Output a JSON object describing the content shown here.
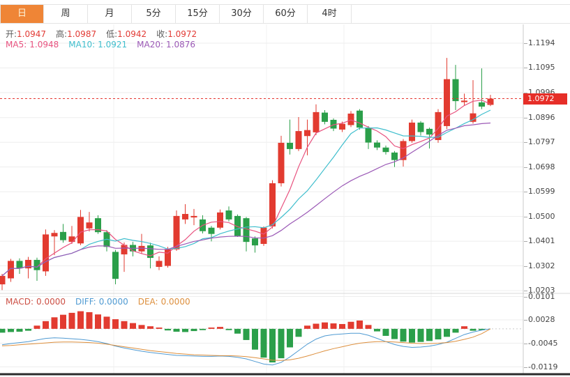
{
  "tabs": {
    "items": [
      {
        "label": "日",
        "active": true
      },
      {
        "label": "周",
        "active": false
      },
      {
        "label": "月",
        "active": false
      },
      {
        "label": "5分",
        "active": false
      },
      {
        "label": "15分",
        "active": false
      },
      {
        "label": "30分",
        "active": false
      },
      {
        "label": "60分",
        "active": false
      },
      {
        "label": "4时",
        "active": false
      }
    ]
  },
  "info": {
    "open_label": "开:",
    "open": "1.0947",
    "high_label": "高:",
    "high": "1.0987",
    "low_label": "低:",
    "low": "1.0942",
    "close_label": "收:",
    "close": "1.0972",
    "ma5_label": "MA5:",
    "ma5": "1.0948",
    "ma10_label": "MA10:",
    "ma10": "1.0921",
    "ma20_label": "MA20:",
    "ma20": "1.0876",
    "macd_label": "MACD:",
    "macd": "0.0000",
    "diff_label": "DIFF:",
    "diff": "0.0000",
    "dea_label": "DEA:",
    "dea": "0.0000"
  },
  "price_axis": {
    "ticks": [
      "1.1194",
      "1.1095",
      "1.0996",
      "1.0896",
      "1.0797",
      "1.0698",
      "1.0599",
      "1.0500",
      "1.0401",
      "1.0302",
      "1.0203"
    ],
    "last_price": "1.0972"
  },
  "macd_axis": {
    "ticks": [
      "0.0101",
      "0.0028",
      "-0.0045",
      "-0.0119"
    ]
  },
  "colors": {
    "up": "#e23b30",
    "down": "#2b9f4a",
    "ma5": "#e8527f",
    "ma10": "#3fbecd",
    "ma20": "#9b59b6",
    "diff": "#4f9ad2",
    "dea": "#dd8f3d",
    "tab_accent": "#ef8536",
    "badge": "#e62e28",
    "grid": "#ededed",
    "last_price_line": "#e6352e"
  },
  "chart_data": {
    "type": "candlestick",
    "title": "",
    "panes": [
      "price",
      "macd"
    ],
    "grid": true,
    "legend_position": "none",
    "price_ticks": [
      1.1194,
      1.1095,
      1.0996,
      1.0896,
      1.0797,
      1.0698,
      1.0599,
      1.05,
      1.0401,
      1.0302,
      1.0203
    ],
    "macd_ticks": [
      0.0101,
      0.0028,
      -0.0045,
      -0.0119
    ],
    "last_price": 1.0972,
    "ohlc_readout": {
      "open": 1.0947,
      "high": 1.0987,
      "low": 1.0942,
      "close": 1.0972
    },
    "ma_readout": {
      "MA5": 1.0948,
      "MA10": 1.0921,
      "MA20": 1.0876
    },
    "macd_readout": {
      "MACD": 0.0,
      "DIFF": 0.0,
      "DEA": 0.0
    },
    "ma_windows": [
      5,
      10,
      20
    ],
    "candles": [
      [
        1.0228,
        1.027,
        1.0205,
        1.0262
      ],
      [
        1.0252,
        1.033,
        1.0238,
        1.0322
      ],
      [
        1.0322,
        1.0332,
        1.027,
        1.0292
      ],
      [
        1.0292,
        1.0338,
        1.0252,
        1.0326
      ],
      [
        1.0326,
        1.0335,
        1.0242,
        1.0285
      ],
      [
        1.028,
        1.0448,
        1.0262,
        1.0428
      ],
      [
        1.042,
        1.0445,
        1.0345,
        1.0434
      ],
      [
        1.0438,
        1.047,
        1.0395,
        1.0405
      ],
      [
        1.0398,
        1.0462,
        1.039,
        1.042
      ],
      [
        1.0392,
        1.0526,
        1.0385,
        1.0498
      ],
      [
        1.0452,
        1.0518,
        1.044,
        1.0476
      ],
      [
        1.0493,
        1.0505,
        1.043,
        1.0437
      ],
      [
        1.0437,
        1.0445,
        1.036,
        1.0378
      ],
      [
        1.0358,
        1.0366,
        1.0228,
        1.025
      ],
      [
        1.0348,
        1.0396,
        1.0278,
        1.0386
      ],
      [
        1.0386,
        1.0398,
        1.034,
        1.036
      ],
      [
        1.036,
        1.043,
        1.0352,
        1.0382
      ],
      [
        1.0384,
        1.0395,
        1.0292,
        1.0334
      ],
      [
        1.0298,
        1.034,
        1.0285,
        1.0322
      ],
      [
        1.0302,
        1.0378,
        1.0295,
        1.0368
      ],
      [
        1.0368,
        1.0524,
        1.0362,
        1.0502
      ],
      [
        1.0488,
        1.0549,
        1.047,
        1.051
      ],
      [
        1.0496,
        1.053,
        1.0465,
        1.0502
      ],
      [
        1.0488,
        1.0505,
        1.0432,
        1.0441
      ],
      [
        1.0455,
        1.0462,
        1.04,
        1.043
      ],
      [
        1.0455,
        1.0528,
        1.0448,
        1.0516
      ],
      [
        1.0524,
        1.054,
        1.048,
        1.0488
      ],
      [
        1.0502,
        1.0508,
        1.0418,
        1.042
      ],
      [
        1.0493,
        1.0498,
        1.036,
        1.0398
      ],
      [
        1.0412,
        1.042,
        1.0355,
        1.0384
      ],
      [
        1.039,
        1.046,
        1.0382,
        1.0455
      ],
      [
        1.046,
        1.0645,
        1.0452,
        1.0633
      ],
      [
        1.0633,
        1.0823,
        1.062,
        1.0795
      ],
      [
        1.0795,
        1.0888,
        1.0748,
        1.077
      ],
      [
        1.077,
        1.0898,
        1.0762,
        1.0842
      ],
      [
        1.0822,
        1.0888,
        1.0745,
        1.0846
      ],
      [
        1.0837,
        1.0949,
        1.0826,
        1.0918
      ],
      [
        1.0916,
        1.0926,
        1.0869,
        1.0879
      ],
      [
        1.0887,
        1.0893,
        1.0842,
        1.0852
      ],
      [
        1.0848,
        1.088,
        1.0838,
        1.0871
      ],
      [
        1.0866,
        1.0922,
        1.0858,
        1.0912
      ],
      [
        1.0924,
        1.093,
        1.0848,
        1.0856
      ],
      [
        1.0856,
        1.0862,
        1.077,
        1.0796
      ],
      [
        1.0796,
        1.0805,
        1.0766,
        1.0776
      ],
      [
        1.0776,
        1.0784,
        1.0748,
        1.0758
      ],
      [
        1.0756,
        1.0762,
        1.0698,
        1.0726
      ],
      [
        1.0726,
        1.081,
        1.07,
        1.0802
      ],
      [
        1.0802,
        1.0888,
        1.0795,
        1.0876
      ],
      [
        1.0876,
        1.0882,
        1.0824,
        1.0838
      ],
      [
        1.0851,
        1.0856,
        1.0772,
        1.0828
      ],
      [
        1.0806,
        1.093,
        1.0795,
        1.0918
      ],
      [
        1.0862,
        1.1135,
        1.085,
        1.105
      ],
      [
        1.105,
        1.1107,
        1.0926,
        1.0962
      ],
      [
        1.0958,
        1.0992,
        1.0944,
        1.0964
      ],
      [
        1.0879,
        1.1046,
        1.0872,
        1.0913
      ],
      [
        1.0957,
        1.1093,
        1.093,
        1.094
      ],
      [
        1.0947,
        1.0987,
        1.0942,
        1.0972
      ]
    ],
    "macd": {
      "histogram": [
        -0.0012,
        -0.001,
        -0.0009,
        -0.0006,
        0.001,
        0.0024,
        0.0036,
        0.0044,
        0.005,
        0.0055,
        0.0052,
        0.0045,
        0.0038,
        0.003,
        0.0024,
        0.0018,
        0.0012,
        0.0008,
        0.0004,
        -0.0005,
        -0.0009,
        -0.001,
        -0.0007,
        -0.0004,
        0.0004,
        0.0006,
        -0.0004,
        -0.0015,
        -0.0035,
        -0.0065,
        -0.009,
        -0.0105,
        -0.0092,
        -0.0058,
        -0.0025,
        0.001,
        0.0016,
        0.002,
        0.0017,
        0.0015,
        0.0022,
        0.0026,
        0.0012,
        -0.0008,
        -0.0022,
        -0.0032,
        -0.004,
        -0.0043,
        -0.0041,
        -0.0038,
        -0.0033,
        -0.0025,
        -0.0012,
        0.0008,
        -0.0006,
        -0.0004,
        0.0
      ],
      "diff": [
        -0.005,
        -0.0046,
        -0.0043,
        -0.004,
        -0.0035,
        -0.003,
        -0.0028,
        -0.0029,
        -0.0031,
        -0.0033,
        -0.0036,
        -0.004,
        -0.0046,
        -0.0054,
        -0.006,
        -0.0065,
        -0.007,
        -0.0074,
        -0.0077,
        -0.008,
        -0.0083,
        -0.0084,
        -0.0085,
        -0.0086,
        -0.0086,
        -0.0085,
        -0.0086,
        -0.0089,
        -0.0094,
        -0.0102,
        -0.011,
        -0.0113,
        -0.0105,
        -0.0088,
        -0.0068,
        -0.0048,
        -0.0032,
        -0.0022,
        -0.0018,
        -0.0016,
        -0.0014,
        -0.0014,
        -0.002,
        -0.003,
        -0.004,
        -0.0049,
        -0.0055,
        -0.0058,
        -0.0057,
        -0.0054,
        -0.0049,
        -0.0042,
        -0.003,
        -0.0018,
        -0.001,
        -0.0004,
        0.0
      ],
      "dea": [
        -0.0053,
        -0.0052,
        -0.005,
        -0.0048,
        -0.0046,
        -0.0044,
        -0.0042,
        -0.0041,
        -0.0041,
        -0.0042,
        -0.0043,
        -0.0045,
        -0.0048,
        -0.0052,
        -0.0056,
        -0.006,
        -0.0064,
        -0.0068,
        -0.0071,
        -0.0074,
        -0.0077,
        -0.0079,
        -0.0081,
        -0.0082,
        -0.0083,
        -0.0084,
        -0.0084,
        -0.0085,
        -0.0087,
        -0.009,
        -0.0094,
        -0.0098,
        -0.0099,
        -0.0097,
        -0.0092,
        -0.0085,
        -0.0077,
        -0.0069,
        -0.0062,
        -0.0056,
        -0.005,
        -0.0045,
        -0.0042,
        -0.004,
        -0.004,
        -0.0041,
        -0.0043,
        -0.0045,
        -0.0046,
        -0.0046,
        -0.0045,
        -0.0043,
        -0.0039,
        -0.0033,
        -0.0026,
        -0.0015,
        0.0
      ]
    }
  }
}
